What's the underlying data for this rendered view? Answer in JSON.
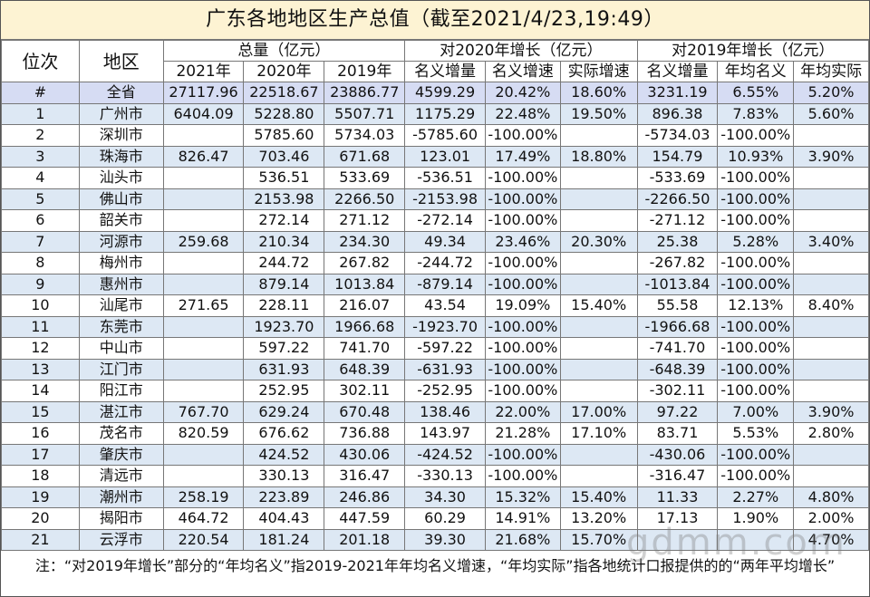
{
  "title": "广东各地地区生产总值（截至2021/4/23,19:49）",
  "headers": {
    "rank": "位次",
    "region": "地区",
    "group_total": "总量（亿元）",
    "group_2020": "对2020年增长（亿元）",
    "group_2019": "对2019年增长（亿元）",
    "sub": [
      "2021年",
      "2020年",
      "2019年",
      "名义增量",
      "名义增速",
      "实际增速",
      "名义增量",
      "年均名义",
      "年均实际"
    ]
  },
  "rows": [
    [
      "#",
      "全省",
      "27117.96",
      "22518.67",
      "23886.77",
      "4599.29",
      "20.42%",
      "18.60%",
      "3231.19",
      "6.55%",
      "5.20%"
    ],
    [
      "1",
      "广州市",
      "6404.09",
      "5228.80",
      "5507.71",
      "1175.29",
      "22.48%",
      "19.50%",
      "896.38",
      "7.83%",
      "5.60%"
    ],
    [
      "2",
      "深圳市",
      "",
      "5785.60",
      "5734.03",
      "-5785.60",
      "-100.00%",
      "",
      "-5734.03",
      "-100.00%",
      ""
    ],
    [
      "3",
      "珠海市",
      "826.47",
      "703.46",
      "671.68",
      "123.01",
      "17.49%",
      "18.80%",
      "154.79",
      "10.93%",
      "3.90%"
    ],
    [
      "4",
      "汕头市",
      "",
      "536.51",
      "533.69",
      "-536.51",
      "-100.00%",
      "",
      "-533.69",
      "-100.00%",
      ""
    ],
    [
      "5",
      "佛山市",
      "",
      "2153.98",
      "2266.50",
      "-2153.98",
      "-100.00%",
      "",
      "-2266.50",
      "-100.00%",
      ""
    ],
    [
      "6",
      "韶关市",
      "",
      "272.14",
      "271.12",
      "-272.14",
      "-100.00%",
      "",
      "-271.12",
      "-100.00%",
      ""
    ],
    [
      "7",
      "河源市",
      "259.68",
      "210.34",
      "234.30",
      "49.34",
      "23.46%",
      "20.30%",
      "25.38",
      "5.28%",
      "3.40%"
    ],
    [
      "8",
      "梅州市",
      "",
      "244.72",
      "267.82",
      "-244.72",
      "-100.00%",
      "",
      "-267.82",
      "-100.00%",
      ""
    ],
    [
      "9",
      "惠州市",
      "",
      "879.14",
      "1013.84",
      "-879.14",
      "-100.00%",
      "",
      "-1013.84",
      "-100.00%",
      ""
    ],
    [
      "10",
      "汕尾市",
      "271.65",
      "228.11",
      "216.07",
      "43.54",
      "19.09%",
      "15.40%",
      "55.58",
      "12.13%",
      "8.40%"
    ],
    [
      "11",
      "东莞市",
      "",
      "1923.70",
      "1966.68",
      "-1923.70",
      "-100.00%",
      "",
      "-1966.68",
      "-100.00%",
      ""
    ],
    [
      "12",
      "中山市",
      "",
      "597.22",
      "741.70",
      "-597.22",
      "-100.00%",
      "",
      "-741.70",
      "-100.00%",
      ""
    ],
    [
      "13",
      "江门市",
      "",
      "631.93",
      "648.39",
      "-631.93",
      "-100.00%",
      "",
      "-648.39",
      "-100.00%",
      ""
    ],
    [
      "14",
      "阳江市",
      "",
      "252.95",
      "302.11",
      "-252.95",
      "-100.00%",
      "",
      "-302.11",
      "-100.00%",
      ""
    ],
    [
      "15",
      "湛江市",
      "767.70",
      "629.24",
      "670.48",
      "138.46",
      "22.00%",
      "17.00%",
      "97.22",
      "7.00%",
      "3.90%"
    ],
    [
      "16",
      "茂名市",
      "820.59",
      "676.62",
      "736.88",
      "143.97",
      "21.28%",
      "17.10%",
      "83.71",
      "5.53%",
      "2.80%"
    ],
    [
      "17",
      "肇庆市",
      "",
      "424.52",
      "430.06",
      "-424.52",
      "-100.00%",
      "",
      "-430.06",
      "-100.00%",
      ""
    ],
    [
      "18",
      "清远市",
      "",
      "330.13",
      "316.47",
      "-330.13",
      "-100.00%",
      "",
      "-316.47",
      "-100.00%",
      ""
    ],
    [
      "19",
      "潮州市",
      "258.19",
      "223.89",
      "246.86",
      "34.30",
      "15.32%",
      "15.40%",
      "11.33",
      "2.27%",
      "4.80%"
    ],
    [
      "20",
      "揭阳市",
      "464.72",
      "404.43",
      "447.59",
      "60.29",
      "14.91%",
      "13.20%",
      "17.13",
      "1.90%",
      "2.00%"
    ],
    [
      "21",
      "云浮市",
      "220.54",
      "181.24",
      "201.18",
      "39.30",
      "21.68%",
      "15.70%",
      "",
      "",
      "4.70%"
    ]
  ],
  "note": "注：“对2019年增长”部分的“年均名义”指2019-2021年年均名义增速，“年均实际”指各地统计口报提供的的“两年平均增长”",
  "watermark": "gdmm.com"
}
